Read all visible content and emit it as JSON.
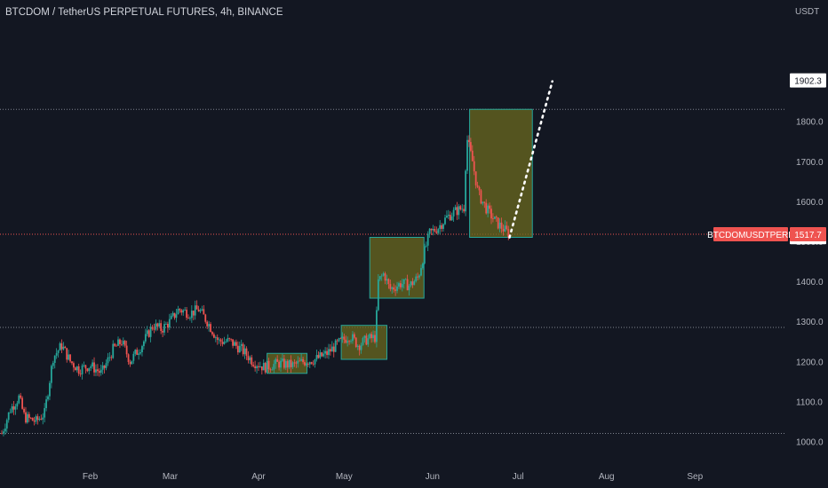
{
  "header": {
    "title": "BTCDOM / TetherUS PERPETUAL FUTURES, 4h, BINANCE"
  },
  "colors": {
    "background": "#131722",
    "axis_text": "#b2b5be",
    "up": "#26a69a",
    "down": "#ef5350",
    "box_fill": "#6b6a1f",
    "box_stroke": "#26a69a",
    "hline": "#9aa0ab",
    "price_line": "#ef5350"
  },
  "chart_data": {
    "type": "candlestick",
    "symbol": "BTCDOMUSDTPERP",
    "unit": "USDT",
    "yticks": [
      1000,
      1100,
      1200,
      1300,
      1400,
      1500,
      1600,
      1700,
      1800
    ],
    "ytick_labels": [
      "1000.0",
      "1100.0",
      "1200.0",
      "1300.0",
      "1400.0",
      "1500.0",
      "1600.0",
      "1700.0",
      "1800.0"
    ],
    "ylim": [
      950,
      2070
    ],
    "x_months": [
      {
        "label": "Feb",
        "day": 31
      },
      {
        "label": "Mar",
        "day": 59
      },
      {
        "label": "Apr",
        "day": 90
      },
      {
        "label": "May",
        "day": 120
      },
      {
        "label": "Jun",
        "day": 151
      },
      {
        "label": "Jul",
        "day": 181
      },
      {
        "label": "Aug",
        "day": 212
      },
      {
        "label": "Sep",
        "day": 243
      }
    ],
    "xlim": [
      0,
      275
    ],
    "last_price": {
      "value": 1517.7,
      "label": "1517.7",
      "symbol_label": "BTCDOMUSDTPERP"
    },
    "price_labels": [
      {
        "value": 1902.3,
        "label": "1902.3"
      },
      {
        "value": 1510.6,
        "label": "1510.6"
      }
    ],
    "horizontal_lines": [
      1830,
      1285,
      1020
    ],
    "price_path": [
      {
        "d": 0,
        "p": 1020
      },
      {
        "d": 3,
        "p": 1080
      },
      {
        "d": 6,
        "p": 1110
      },
      {
        "d": 8,
        "p": 1060
      },
      {
        "d": 12,
        "p": 1050
      },
      {
        "d": 15,
        "p": 1070
      },
      {
        "d": 18,
        "p": 1210
      },
      {
        "d": 21,
        "p": 1240
      },
      {
        "d": 24,
        "p": 1200
      },
      {
        "d": 27,
        "p": 1180
      },
      {
        "d": 31,
        "p": 1190
      },
      {
        "d": 35,
        "p": 1170
      },
      {
        "d": 39,
        "p": 1230
      },
      {
        "d": 42,
        "p": 1250
      },
      {
        "d": 45,
        "p": 1200
      },
      {
        "d": 49,
        "p": 1240
      },
      {
        "d": 53,
        "p": 1290
      },
      {
        "d": 56,
        "p": 1280
      },
      {
        "d": 59,
        "p": 1300
      },
      {
        "d": 62,
        "p": 1330
      },
      {
        "d": 66,
        "p": 1320
      },
      {
        "d": 69,
        "p": 1330
      },
      {
        "d": 72,
        "p": 1300
      },
      {
        "d": 76,
        "p": 1250
      },
      {
        "d": 80,
        "p": 1250
      },
      {
        "d": 84,
        "p": 1230
      },
      {
        "d": 88,
        "p": 1200
      },
      {
        "d": 92,
        "p": 1185
      },
      {
        "d": 97,
        "p": 1195
      },
      {
        "d": 102,
        "p": 1190
      },
      {
        "d": 106,
        "p": 1200
      },
      {
        "d": 110,
        "p": 1205
      },
      {
        "d": 114,
        "p": 1220
      },
      {
        "d": 118,
        "p": 1245
      },
      {
        "d": 122,
        "p": 1265
      },
      {
        "d": 125,
        "p": 1240
      },
      {
        "d": 128,
        "p": 1255
      },
      {
        "d": 131,
        "p": 1260
      },
      {
        "d": 132,
        "p": 1400
      },
      {
        "d": 134,
        "p": 1420
      },
      {
        "d": 136,
        "p": 1380
      },
      {
        "d": 140,
        "p": 1395
      },
      {
        "d": 143,
        "p": 1390
      },
      {
        "d": 146,
        "p": 1410
      },
      {
        "d": 148,
        "p": 1470
      },
      {
        "d": 150,
        "p": 1520
      },
      {
        "d": 153,
        "p": 1535
      },
      {
        "d": 156,
        "p": 1560
      },
      {
        "d": 159,
        "p": 1575
      },
      {
        "d": 162,
        "p": 1585
      },
      {
        "d": 163,
        "p": 1760
      },
      {
        "d": 165,
        "p": 1700
      },
      {
        "d": 167,
        "p": 1620
      },
      {
        "d": 170,
        "p": 1580
      },
      {
        "d": 173,
        "p": 1550
      },
      {
        "d": 176,
        "p": 1530
      },
      {
        "d": 178,
        "p": 1517.7
      }
    ],
    "boxes": [
      {
        "x0": 93,
        "x1": 107,
        "y0": 1170,
        "y1": 1220
      },
      {
        "x0": 119,
        "x1": 135,
        "y0": 1205,
        "y1": 1290
      },
      {
        "x0": 129,
        "x1": 148,
        "y0": 1358,
        "y1": 1510
      },
      {
        "x0": 164,
        "x1": 186,
        "y0": 1510,
        "y1": 1830
      }
    ],
    "projection": [
      {
        "d": 178,
        "p": 1510
      },
      {
        "d": 193,
        "p": 1900
      }
    ]
  }
}
